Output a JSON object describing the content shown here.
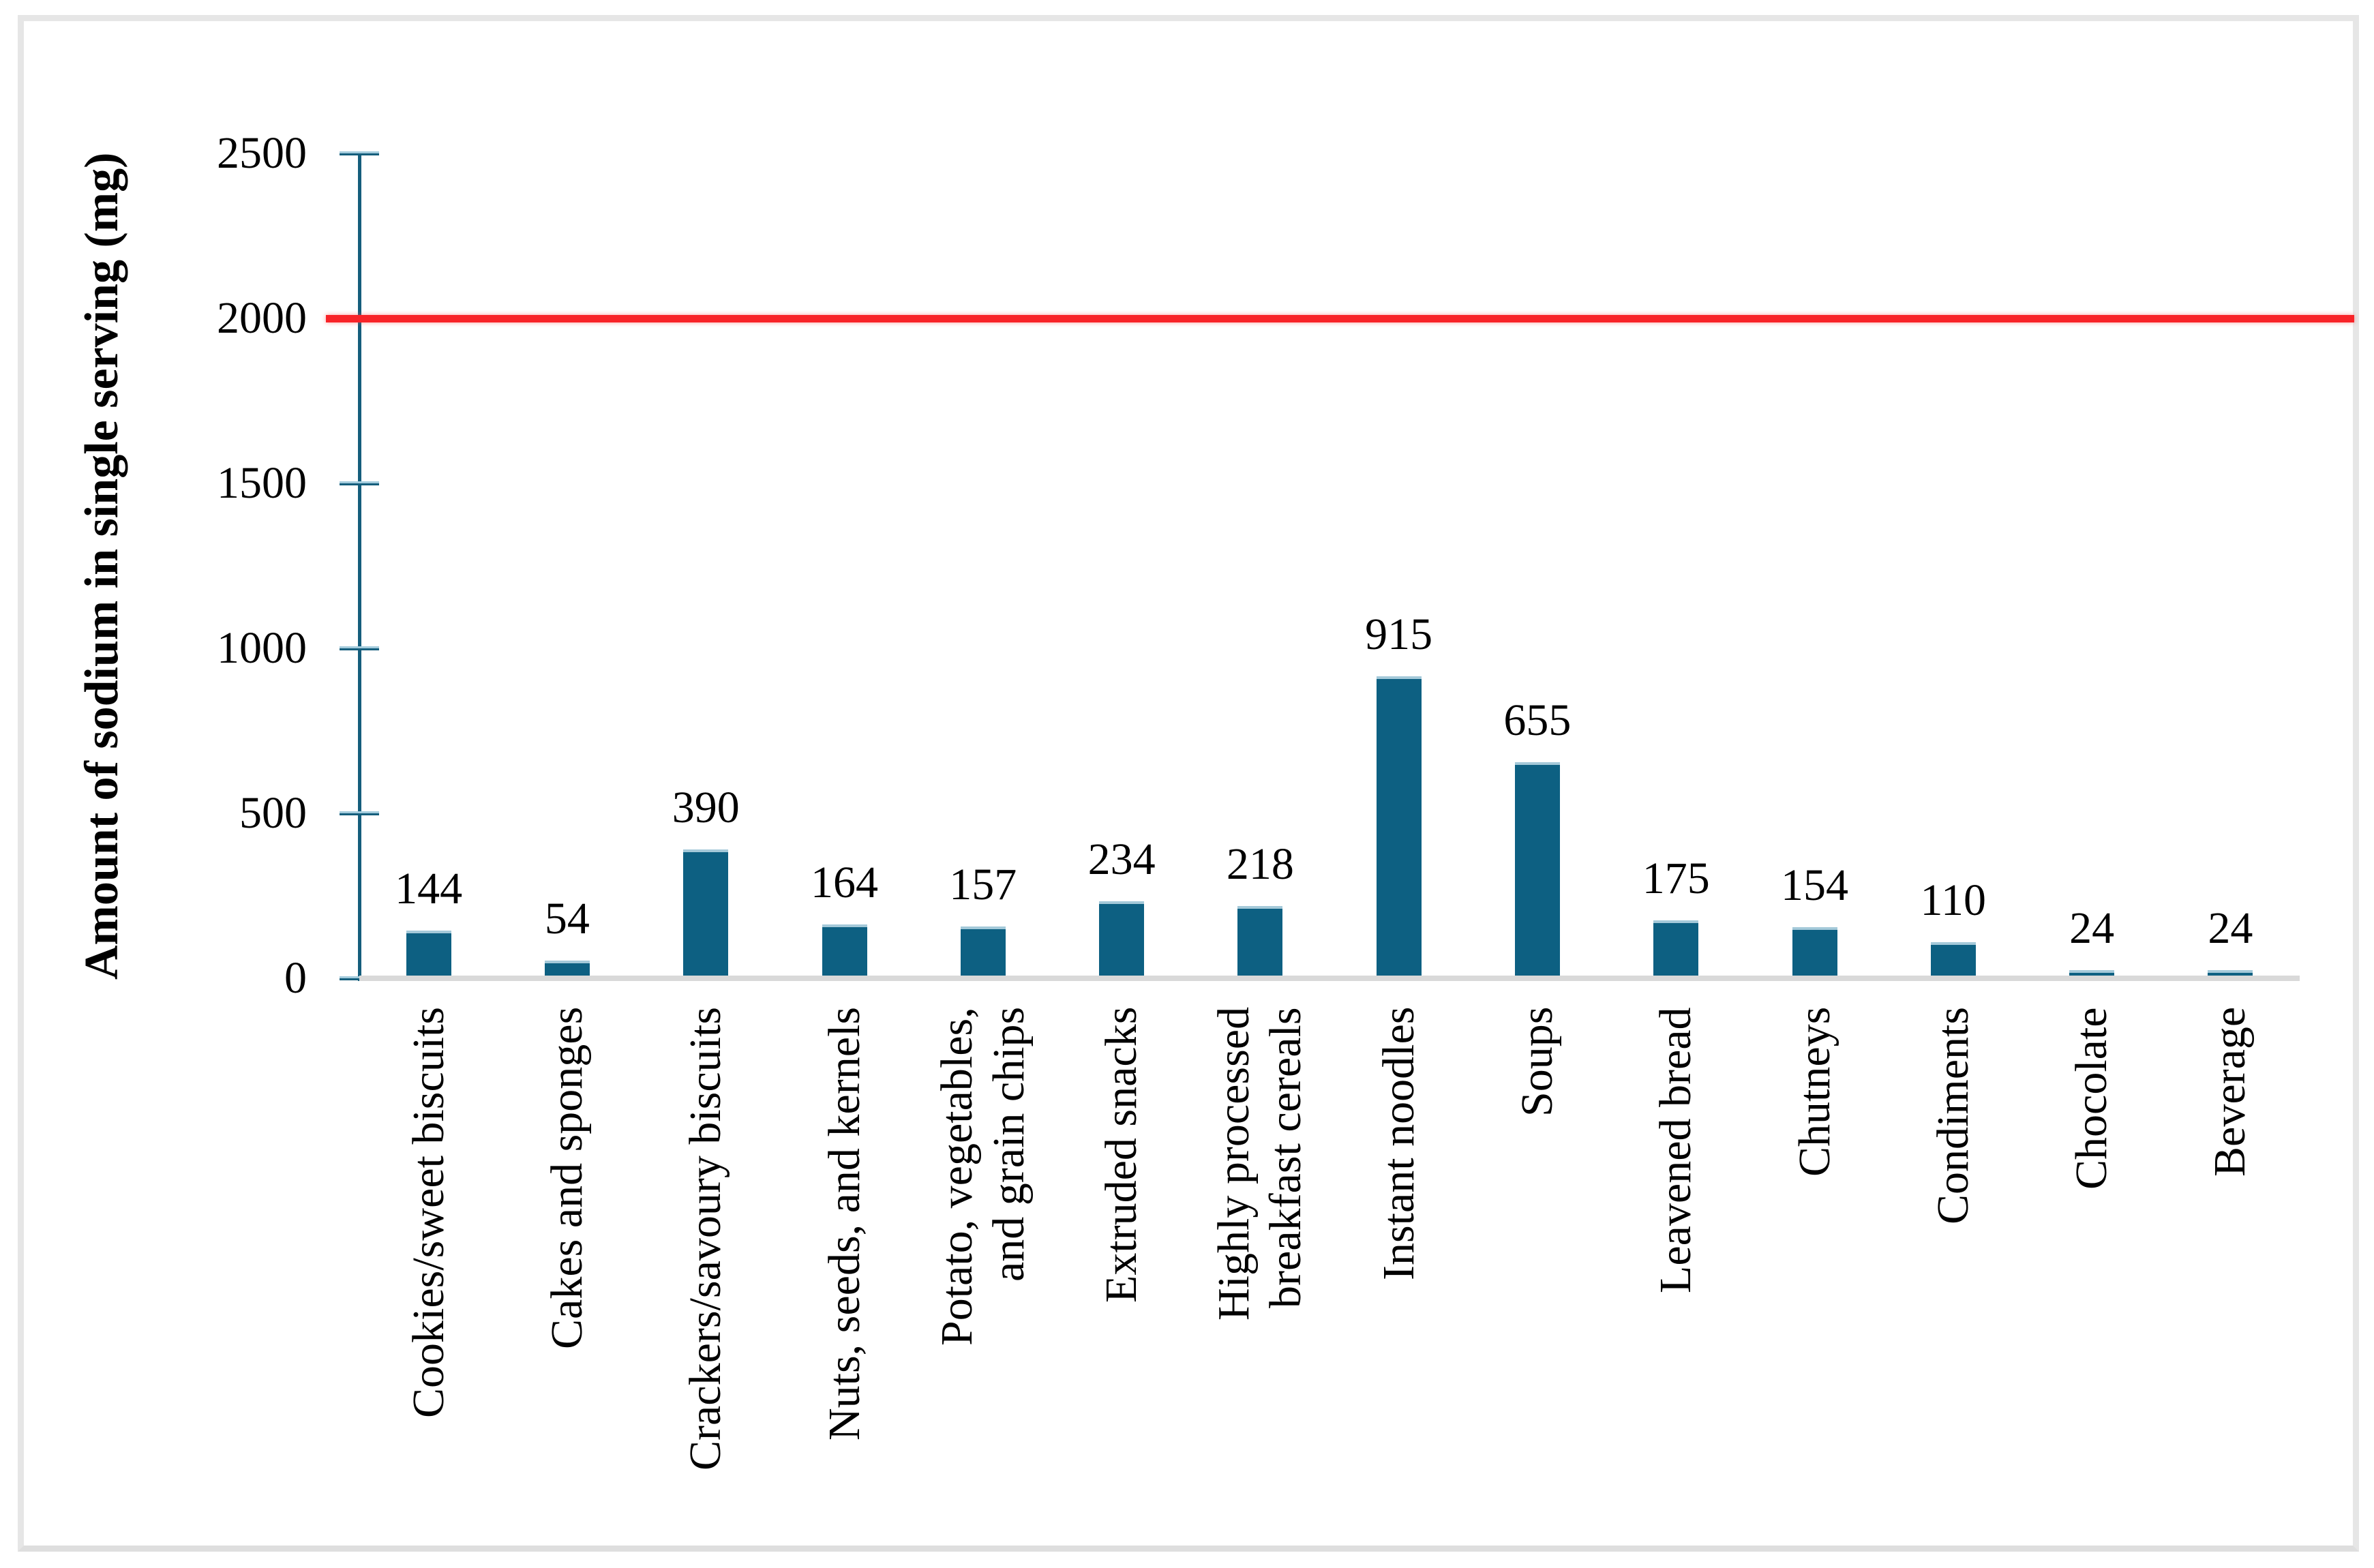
{
  "frame": {
    "border_color": "#e6e6e6",
    "background": "#ffffff"
  },
  "chart_data": {
    "type": "bar",
    "title": "",
    "xlabel": "",
    "ylabel": "Amount of sodium in single serving (mg)",
    "ylim": [
      0,
      2500
    ],
    "yticks": [
      0,
      500,
      1000,
      1500,
      2000,
      2500
    ],
    "grid": false,
    "legend": null,
    "categories": [
      "Cookies/sweet biscuits",
      "Cakes and sponges",
      "Crackers/savoury biscuits",
      "Nuts, seeds, and kernels",
      "Potato, vegetables,\nand grain chips",
      "Extruded snacks",
      "Highly processed\nbreakfast cereals",
      "Instant noodles",
      "Soups",
      "Leavened bread",
      "Chutneys",
      "Condiments",
      "Chocolate",
      "Beverage"
    ],
    "values": [
      144,
      54,
      390,
      164,
      157,
      234,
      218,
      915,
      655,
      175,
      154,
      110,
      24,
      24
    ],
    "bar_color": "#0d6082",
    "bar_top_highlight": "#a4c9d9",
    "axis_color": "#155e7c",
    "tick_highlight": "#a3cbdc",
    "category_axis_line_color": "#d9d9d9",
    "reference_line": {
      "value": 2000,
      "color": "#f82328"
    }
  }
}
